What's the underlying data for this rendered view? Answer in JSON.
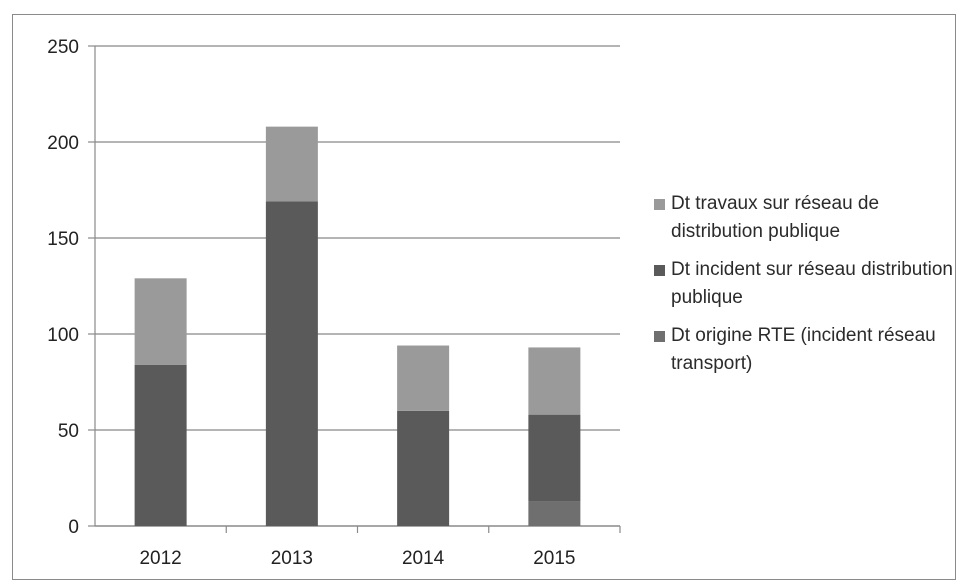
{
  "chart_data": {
    "type": "bar",
    "stacked": true,
    "categories": [
      "2012",
      "2013",
      "2014",
      "2015"
    ],
    "series": [
      {
        "name": "Dt origine RTE (incident réseau transport)",
        "values": [
          0,
          0,
          0,
          13
        ],
        "color": "#6f6f6f"
      },
      {
        "name": "Dt incident sur réseau distribution publique",
        "values": [
          84,
          169,
          60,
          45
        ],
        "color": "#5a5a5a"
      },
      {
        "name": "Dt travaux sur réseau de distribution publique",
        "values": [
          45,
          39,
          34,
          35
        ],
        "color": "#9a9a9a"
      }
    ],
    "legend_order": [
      2,
      1,
      0
    ],
    "yticks": [
      "0",
      "50",
      "100",
      "150",
      "200",
      "250"
    ],
    "ylim": [
      0,
      250
    ],
    "title": "",
    "xlabel": "",
    "ylabel": "",
    "grid": true,
    "legend_position": "right"
  }
}
